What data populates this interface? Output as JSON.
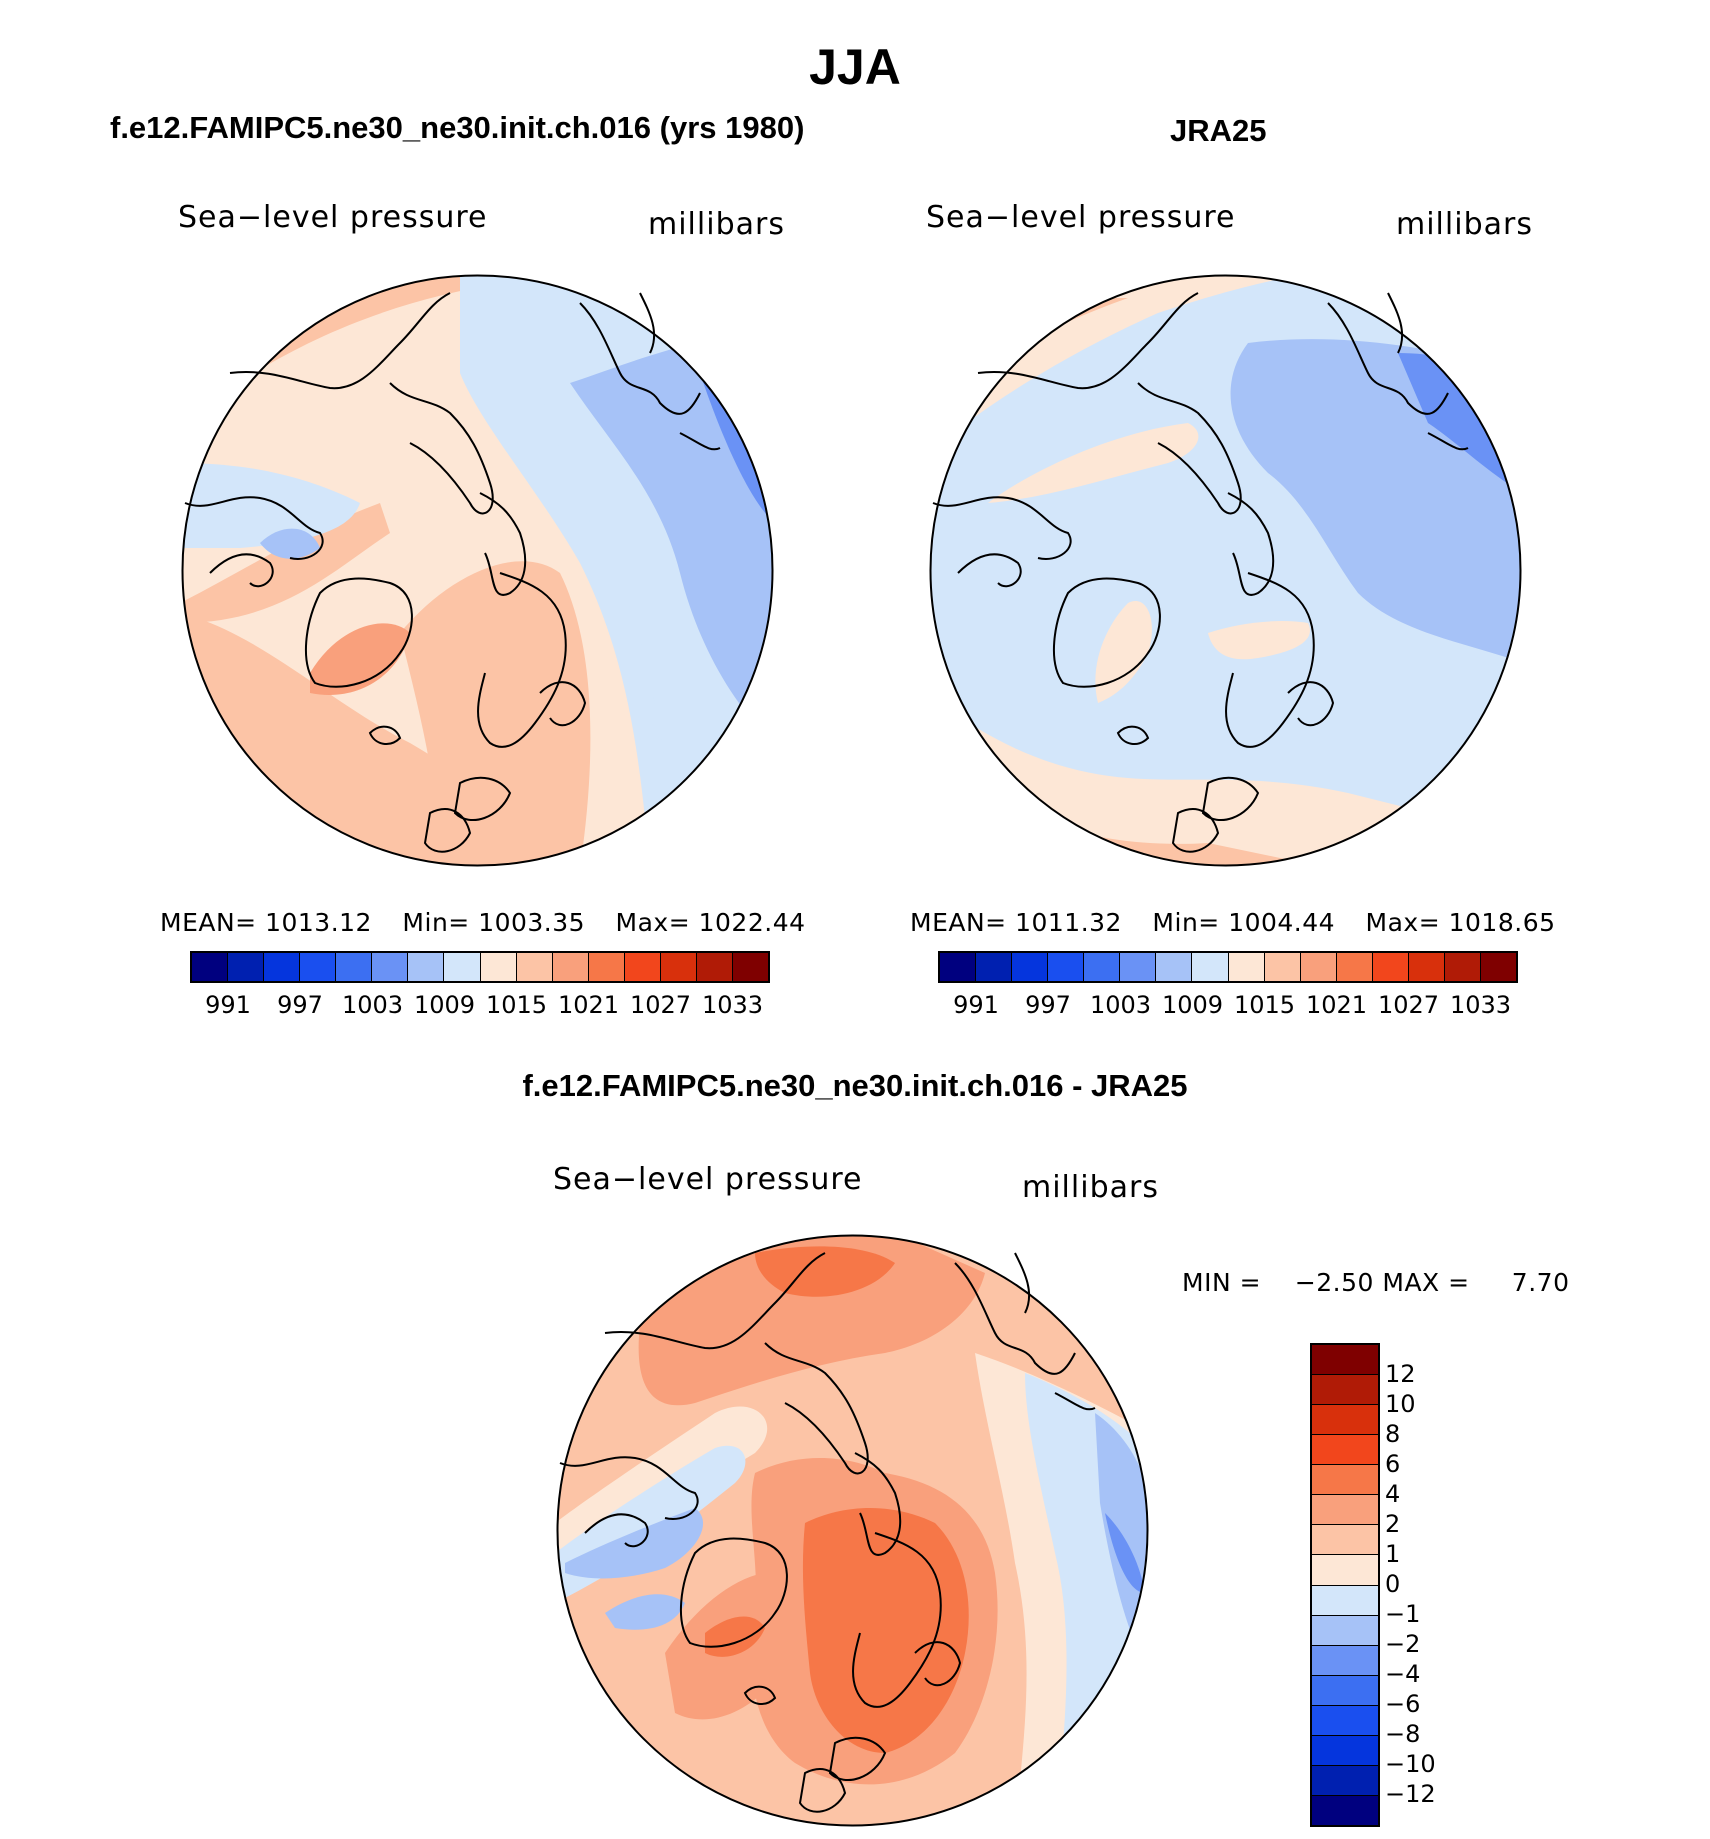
{
  "title": "JJA",
  "panels": [
    {
      "title": "f.e12.FAMIPC5.ne30_ne30.init.ch.016 (yrs 1980)",
      "variable": "Sea−level pressure",
      "units": "millibars",
      "mean_label": "MEAN=",
      "mean": "1013.12",
      "min_label": "Min=",
      "min": "1003.35",
      "max_label": "Max=",
      "max": "1022.44"
    },
    {
      "title": "JRA25",
      "variable": "Sea−level pressure",
      "units": "millibars",
      "mean_label": "MEAN=",
      "mean": "1011.32",
      "min_label": "Min=",
      "min": "1004.44",
      "max_label": "Max=",
      "max": "1018.65"
    }
  ],
  "abs_colorbar": {
    "colors": [
      "#00007f",
      "#0020b0",
      "#0535dd",
      "#1a4fef",
      "#3c6ff2",
      "#6a92f5",
      "#a6c2f7",
      "#d3e6fa",
      "#fde7d6",
      "#fcc4a6",
      "#f9a07c",
      "#f67748",
      "#f2461c",
      "#d8300c",
      "#b01b06",
      "#7f0000"
    ],
    "labels": [
      "991",
      "997",
      "1003",
      "1009",
      "1015",
      "1021",
      "1027",
      "1033"
    ]
  },
  "diff_panel": {
    "title": "f.e12.FAMIPC5.ne30_ne30.init.ch.016 - JRA25",
    "variable": "Sea−level pressure",
    "units": "millibars",
    "minmax": "MIN =    −2.50 MAX =     7.70"
  },
  "diff_colorbar": {
    "colors": [
      "#7f0000",
      "#b01b06",
      "#d8300c",
      "#f2461c",
      "#f67748",
      "#f9a07c",
      "#fcc4a6",
      "#fde7d6",
      "#d3e6fa",
      "#a6c2f7",
      "#6a92f5",
      "#3c6ff2",
      "#1a4fef",
      "#0535dd",
      "#0020b0",
      "#00007f"
    ],
    "labels": [
      "12",
      "10",
      "8",
      "6",
      "4",
      "2",
      "1",
      "0",
      "−1",
      "−2",
      "−4",
      "−6",
      "−8",
      "−10",
      "−12"
    ]
  }
}
